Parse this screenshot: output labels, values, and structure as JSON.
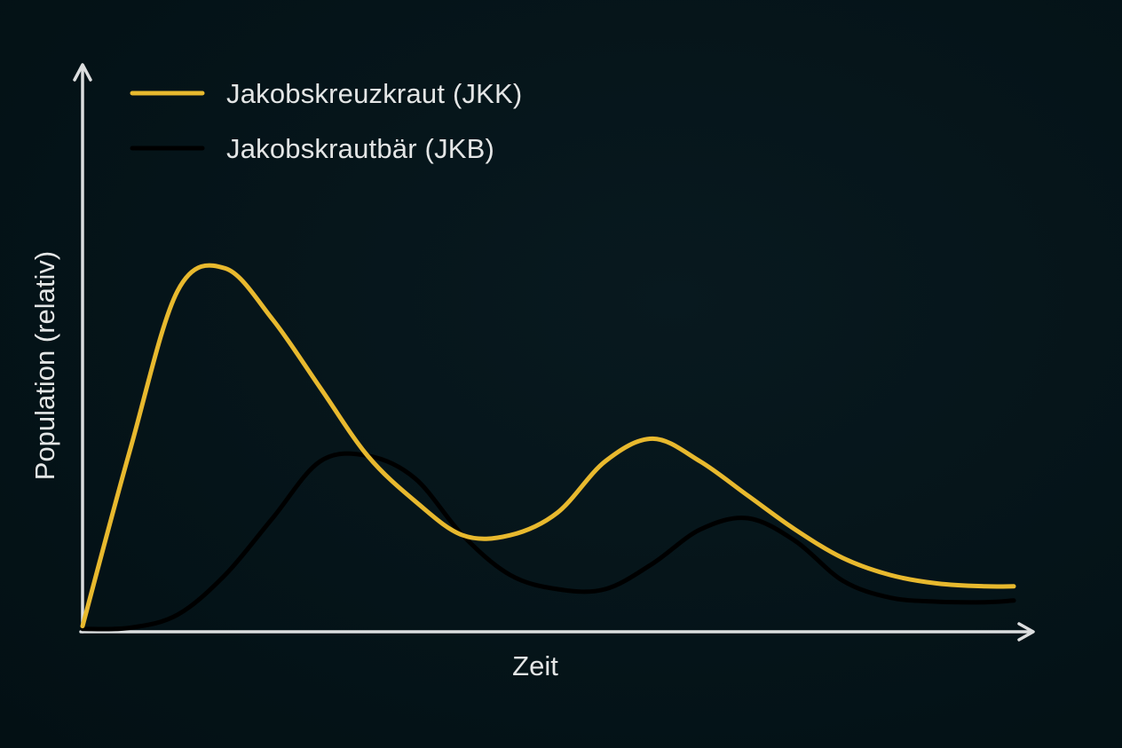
{
  "chart_data": {
    "type": "line",
    "title": "",
    "xlabel": "Zeit",
    "ylabel": "Population (relativ)",
    "grid": false,
    "legend_position": "top-left",
    "ylim": [
      0,
      100
    ],
    "xlim": [
      0,
      100
    ],
    "x": [
      0,
      5,
      10,
      15,
      20,
      25,
      30,
      35,
      40,
      45,
      50,
      55,
      60,
      65,
      70,
      75,
      80,
      85,
      90,
      95,
      98
    ],
    "series": [
      {
        "name": "Jakobskreuzkraut (JKK)",
        "color": "#e8b92e",
        "values": [
          1,
          32,
          60,
          64,
          55,
          43,
          31,
          23,
          17,
          17,
          21,
          30,
          34,
          30,
          24,
          18,
          13,
          10,
          8.5,
          8,
          8
        ]
      },
      {
        "name": "Jakobskrautbär (JKB)",
        "color": "#000000",
        "values": [
          0.5,
          0.7,
          3,
          10,
          20,
          30,
          31,
          27,
          17,
          10,
          7.5,
          7.5,
          12,
          18,
          20,
          16,
          9,
          6,
          5.3,
          5.2,
          5.5
        ]
      }
    ]
  },
  "legend": {
    "items": [
      {
        "label": "Jakobskreuzkraut (JKK)",
        "color": "#e8b92e"
      },
      {
        "label": "Jakobskrautbär (JKB)",
        "color": "#000000"
      }
    ]
  },
  "axes": {
    "x_label": "Zeit",
    "y_label": "Population (relativ)",
    "axis_color": "#dcdedf"
  }
}
